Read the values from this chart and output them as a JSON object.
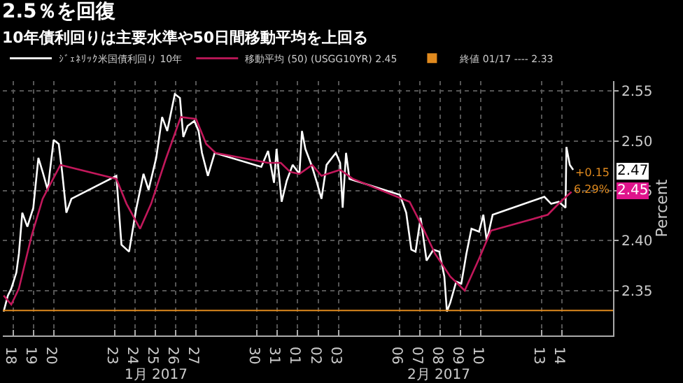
{
  "chart_data": {
    "type": "line",
    "title": "2.5％を回復",
    "subtitle": "10年債利回りは主要水準や50日間移動平均を上回る",
    "ylabel": "Percent",
    "xlim": [
      "2017-01-17T12:00",
      "2017-02-16T12:00"
    ],
    "xticks": [
      {
        "value": "2017-01-18",
        "label": "18"
      },
      {
        "value": "2017-01-19",
        "label": "19"
      },
      {
        "value": "2017-01-20",
        "label": "20"
      },
      {
        "value": "2017-01-23",
        "label": "23"
      },
      {
        "value": "2017-01-24",
        "label": "24"
      },
      {
        "value": "2017-01-25",
        "label": "25"
      },
      {
        "value": "2017-01-26",
        "label": "26"
      },
      {
        "value": "2017-01-27",
        "label": "27"
      },
      {
        "value": "2017-01-30",
        "label": "30"
      },
      {
        "value": "2017-01-31",
        "label": "31"
      },
      {
        "value": "2017-02-01",
        "label": "01"
      },
      {
        "value": "2017-02-02",
        "label": "02"
      },
      {
        "value": "2017-02-03",
        "label": "03"
      },
      {
        "value": "2017-02-06",
        "label": "06"
      },
      {
        "value": "2017-02-07",
        "label": "07"
      },
      {
        "value": "2017-02-08",
        "label": "08"
      },
      {
        "value": "2017-02-09",
        "label": "09"
      },
      {
        "value": "2017-02-10",
        "label": "10"
      },
      {
        "value": "2017-02-13",
        "label": "13"
      },
      {
        "value": "2017-02-14",
        "label": "14"
      }
    ],
    "ylim": [
      2.305,
      2.56
    ],
    "yticks": [
      2.35,
      {
        "value": 2.4,
        "label": "2.40"
      },
      2.45,
      {
        "value": 2.5,
        "label": "2.50"
      },
      2.55
    ],
    "grid": true,
    "legend": "top left",
    "marker": "none",
    "line_style": "solid",
    "series": [
      {
        "name": "ｼﾞｪﾈﾘｯｸ米国債利回り 10年",
        "color": "#ffffff",
        "x": [
          "2017-01-17T13:00",
          "2017-01-17T18:00",
          "2017-01-17T22:00",
          "2017-01-18T04:00",
          "2017-01-18T07:00",
          "2017-01-18T11:00",
          "2017-01-18T17:00",
          "2017-01-19T00:00",
          "2017-01-19T06:00",
          "2017-01-19T11:00",
          "2017-01-19T17:00",
          "2017-01-20T00:00",
          "2017-01-20T06:00",
          "2017-01-20T10:00",
          "2017-01-20T15:00",
          "2017-01-20T21:00",
          "2017-01-23T02:00",
          "2017-01-23T08:00",
          "2017-01-23T17:00",
          "2017-01-24T01:00",
          "2017-01-24T10:00",
          "2017-01-24T16:00",
          "2017-01-25T01:00",
          "2017-01-25T08:00",
          "2017-01-25T14:00",
          "2017-01-25T23:00",
          "2017-01-26T05:00",
          "2017-01-26T09:00",
          "2017-01-26T14:00",
          "2017-01-26T22:00",
          "2017-01-27T03:00",
          "2017-01-27T07:00",
          "2017-01-27T14:00",
          "2017-01-27T22:00",
          "2017-01-30T05:00",
          "2017-01-30T13:00",
          "2017-01-30T20:00",
          "2017-01-30T23:00",
          "2017-01-31T05:00",
          "2017-01-31T11:00",
          "2017-01-31T18:00",
          "2017-02-01T02:00",
          "2017-02-01T05:00",
          "2017-02-01T09:00",
          "2017-02-01T17:00",
          "2017-02-01T22:00",
          "2017-02-02T04:00",
          "2017-02-02T10:00",
          "2017-02-02T21:00",
          "2017-02-03T02:00",
          "2017-02-03T05:00",
          "2017-02-03T09:00",
          "2017-02-03T13:00",
          "2017-02-06T00:30",
          "2017-02-06T08:00",
          "2017-02-06T14:00",
          "2017-02-06T19:00",
          "2017-02-07T01:00",
          "2017-02-07T08:00",
          "2017-02-07T16:00",
          "2017-02-07T23:00",
          "2017-02-08T05:00",
          "2017-02-08T08:00",
          "2017-02-08T12:00",
          "2017-02-08T19:00",
          "2017-02-09T01:00",
          "2017-02-09T07:00",
          "2017-02-09T13:00",
          "2017-02-09T22:00",
          "2017-02-10T03:00",
          "2017-02-10T07:00",
          "2017-02-10T14:00",
          "2017-02-13T03:00",
          "2017-02-13T11:00",
          "2017-02-13T20:00",
          "2017-02-14T04:00",
          "2017-02-14T05:00",
          "2017-02-14T09:00",
          "2017-02-14T13:00"
        ],
        "values": [
          2.329,
          2.345,
          2.352,
          2.368,
          2.387,
          2.428,
          2.414,
          2.433,
          2.483,
          2.469,
          2.451,
          2.501,
          2.497,
          2.469,
          2.428,
          2.442,
          2.465,
          2.396,
          2.389,
          2.43,
          2.467,
          2.451,
          2.483,
          2.524,
          2.51,
          2.547,
          2.543,
          2.504,
          2.515,
          2.52,
          2.51,
          2.488,
          2.465,
          2.488,
          2.474,
          2.49,
          2.458,
          2.492,
          2.439,
          2.46,
          2.476,
          2.467,
          2.51,
          2.492,
          2.474,
          2.46,
          2.442,
          2.476,
          2.488,
          2.478,
          2.433,
          2.488,
          2.462,
          2.446,
          2.428,
          2.391,
          2.389,
          2.423,
          2.38,
          2.391,
          2.389,
          2.364,
          2.329,
          2.338,
          2.359,
          2.357,
          2.387,
          2.412,
          2.409,
          2.426,
          2.4,
          2.426,
          2.444,
          2.437,
          2.439,
          2.433,
          2.494,
          2.476,
          2.471
        ]
      },
      {
        "name": "移動平均 (50) (USGG10YR) 2.45",
        "color": "#c2185b",
        "x": [
          "2017-01-17T13:00",
          "2017-01-17T22:00",
          "2017-01-18T07:00",
          "2017-01-18T22:00",
          "2017-01-19T11:00",
          "2017-01-20T08:00",
          "2017-01-23T02:00",
          "2017-01-23T14:00",
          "2017-01-24T06:00",
          "2017-01-24T19:00",
          "2017-01-25T12:00",
          "2017-01-26T06:00",
          "2017-01-27T00:00",
          "2017-01-27T12:00",
          "2017-01-27T23:00",
          "2017-01-30T13:00",
          "2017-01-31T04:00",
          "2017-01-31T15:00",
          "2017-02-01T02:00",
          "2017-02-01T17:00",
          "2017-02-02T04:00",
          "2017-02-03T02:00",
          "2017-02-03T17:00",
          "2017-02-06T12:00",
          "2017-02-07T03:00",
          "2017-02-07T18:00",
          "2017-02-08T12:00",
          "2017-02-09T05:00",
          "2017-02-09T22:00",
          "2017-02-10T12:00",
          "2017-02-13T07:00",
          "2017-02-13T22:00",
          "2017-02-14T11:00"
        ],
        "values": [
          2.345,
          2.336,
          2.352,
          2.405,
          2.442,
          2.476,
          2.462,
          2.437,
          2.412,
          2.437,
          2.481,
          2.524,
          2.522,
          2.497,
          2.488,
          2.478,
          2.478,
          2.469,
          2.467,
          2.476,
          2.465,
          2.471,
          2.462,
          2.439,
          2.414,
          2.387,
          2.364,
          2.35,
          2.382,
          2.41,
          2.426,
          2.439,
          2.449
        ]
      }
    ],
    "ref_lines": [
      {
        "axis": "y",
        "value": 2.33,
        "label": "終値 01/17 ---- 2.33",
        "color": "#e08a1e",
        "line_style": "solid"
      }
    ],
    "annotations": [
      "1月 2017",
      "2月 2017",
      {
        "text": "2.47",
        "y": 2.47
      },
      {
        "text": "2.45",
        "y": 2.45
      },
      "+0.15",
      "6.29%"
    ]
  }
}
